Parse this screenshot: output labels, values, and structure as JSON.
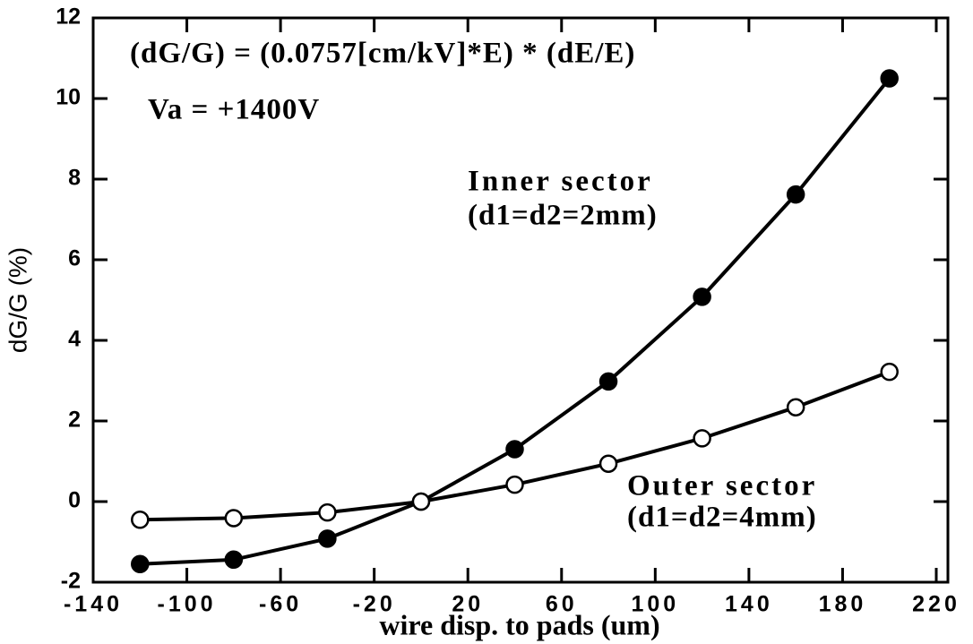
{
  "chart_data": {
    "type": "line",
    "xlabel": "wire disp. to pads  (um)",
    "ylabel": "dG/G (%)",
    "x": [
      -120,
      -80,
      -40,
      0,
      40,
      80,
      120,
      160,
      200
    ],
    "series": [
      {
        "name": "Inner sector",
        "color": "#000000",
        "marker": "filled",
        "values": [
          -1.55,
          -1.44,
          -0.92,
          0,
          1.3,
          2.98,
          5.08,
          7.62,
          10.5
        ]
      },
      {
        "name": "Outer sector",
        "color": "#000000",
        "marker": "open",
        "values": [
          -0.45,
          -0.41,
          -0.27,
          0,
          0.42,
          0.94,
          1.57,
          2.34,
          3.22
        ]
      }
    ],
    "annotations": [
      "(dG/G) = (0.0757[cm/kV]*E) * (dE/E)",
      "Va = +1400V",
      "(d1=d2=2mm)",
      "(d1=d2=4mm)"
    ],
    "xlim": [
      -140,
      220
    ],
    "xticks": [
      -140,
      -100,
      -60,
      -20,
      20,
      60,
      100,
      140,
      180,
      220
    ],
    "ylim": [
      -2,
      12
    ],
    "yticks": [
      -2,
      0,
      2,
      4,
      6,
      8,
      10,
      12
    ]
  }
}
